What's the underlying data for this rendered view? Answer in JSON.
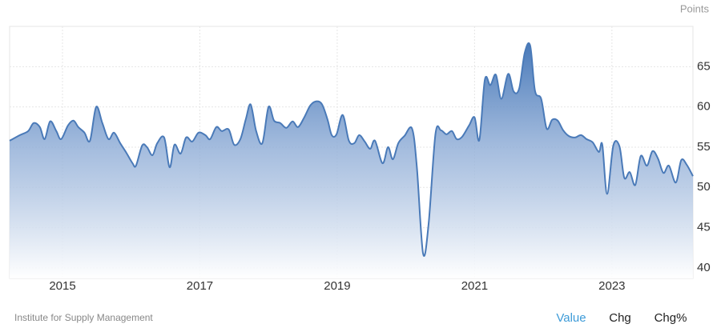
{
  "chart_data": {
    "type": "area",
    "unit": "Points",
    "source": "Institute for Supply Management",
    "x": [
      2014.23,
      2014.38,
      2014.5,
      2014.58,
      2014.67,
      2014.74,
      2014.82,
      2014.91,
      2014.98,
      2015.08,
      2015.16,
      2015.23,
      2015.32,
      2015.4,
      2015.49,
      2015.58,
      2015.67,
      2015.75,
      2015.84,
      2015.93,
      2016.02,
      2016.07,
      2016.16,
      2016.23,
      2016.31,
      2016.38,
      2016.48,
      2016.56,
      2016.63,
      2016.72,
      2016.8,
      2016.89,
      2016.98,
      2017.08,
      2017.15,
      2017.24,
      2017.32,
      2017.42,
      2017.5,
      2017.59,
      2017.67,
      2017.74,
      2017.82,
      2017.91,
      2018.0,
      2018.08,
      2018.17,
      2018.26,
      2018.35,
      2018.43,
      2018.52,
      2018.61,
      2018.7,
      2018.78,
      2018.86,
      2018.92,
      2018.99,
      2019.08,
      2019.17,
      2019.25,
      2019.32,
      2019.4,
      2019.48,
      2019.55,
      2019.66,
      2019.74,
      2019.81,
      2019.89,
      2019.98,
      2020.09,
      2020.16,
      2020.25,
      2020.33,
      2020.43,
      2020.51,
      2020.59,
      2020.67,
      2020.74,
      2020.82,
      2020.92,
      2021.0,
      2021.07,
      2021.15,
      2021.23,
      2021.31,
      2021.39,
      2021.49,
      2021.57,
      2021.65,
      2021.73,
      2021.81,
      2021.88,
      2021.97,
      2022.05,
      2022.13,
      2022.21,
      2022.29,
      2022.37,
      2022.46,
      2022.55,
      2022.63,
      2022.72,
      2022.81,
      2022.86,
      2022.93,
      2023.02,
      2023.11,
      2023.18,
      2023.26,
      2023.34,
      2023.42,
      2023.51,
      2023.59,
      2023.67,
      2023.75,
      2023.83,
      2023.93,
      2024.01,
      2024.09,
      2024.18
    ],
    "values": [
      55.8,
      56.5,
      57,
      58,
      57.5,
      56,
      58.2,
      57,
      56,
      57.7,
      58.3,
      57.5,
      56.8,
      55.8,
      60,
      58,
      56,
      56.8,
      55.5,
      54.3,
      53,
      52.7,
      55.2,
      55,
      54,
      55.5,
      56.2,
      52.5,
      55.3,
      54.2,
      56.2,
      55.7,
      56.8,
      56.5,
      56,
      57.5,
      57,
      57.2,
      55.3,
      56,
      58.5,
      60.3,
      57,
      55.5,
      60,
      58.3,
      58,
      57.4,
      58.2,
      57.5,
      58.7,
      60.2,
      60.7,
      60.3,
      58.4,
      56.5,
      56.6,
      59,
      55.8,
      55.5,
      56.5,
      55.7,
      54.8,
      55.8,
      53,
      55,
      53.5,
      55.5,
      56.4,
      57.3,
      52.5,
      41.8,
      45.4,
      56.6,
      57.1,
      56.6,
      57,
      56,
      56.3,
      57.7,
      58.7,
      55.9,
      63.4,
      62.7,
      64,
      61,
      64.1,
      61.9,
      62.3,
      66.7,
      67.6,
      62,
      61,
      57.3,
      58.4,
      58.3,
      57.1,
      56.4,
      56.2,
      56.5,
      56,
      55.6,
      54.4,
      55.3,
      49.2,
      55.2,
      55.1,
      51.2,
      51.9,
      50.3,
      53.9,
      52.7,
      54.5,
      53.6,
      51.8,
      52.7,
      50.6,
      53.4,
      52.8,
      51.4
    ],
    "color": "#4a7ab8",
    "xlim": [
      2014.23,
      2024.18
    ],
    "xticks": [
      2015,
      2017,
      2019,
      2021,
      2023
    ],
    "ylim": [
      38.7,
      70
    ],
    "yticks": [
      40,
      45,
      50,
      55,
      60,
      65
    ],
    "grid": true
  },
  "controls": [
    "Value",
    "Chg",
    "Chg%"
  ]
}
